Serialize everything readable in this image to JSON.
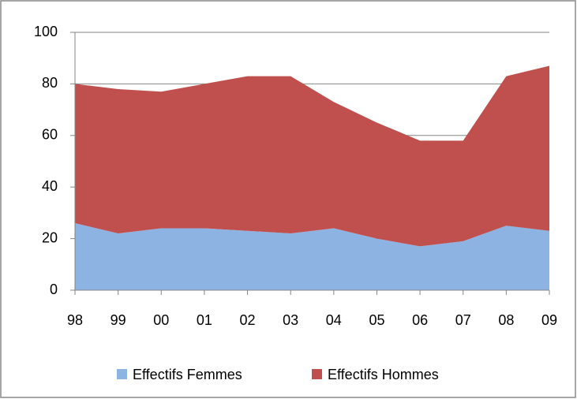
{
  "chart_data": {
    "type": "stacked-area",
    "categories": [
      "98",
      "99",
      "00",
      "01",
      "02",
      "03",
      "04",
      "05",
      "06",
      "07",
      "08",
      "09"
    ],
    "series": [
      {
        "name": "Effectifs Femmes",
        "color": "#8db3e2",
        "values": [
          26,
          22,
          24,
          24,
          23,
          22,
          24,
          20,
          17,
          19,
          25,
          23
        ]
      },
      {
        "name": "Effectifs Hommes",
        "color": "#c0504d",
        "values": [
          54,
          56,
          53,
          56,
          60,
          61,
          49,
          45,
          41,
          39,
          58,
          64
        ]
      }
    ],
    "ylim": [
      0,
      100
    ],
    "yticks": [
      0,
      20,
      40,
      60,
      80,
      100
    ],
    "grid": true,
    "legend": "bottom"
  }
}
